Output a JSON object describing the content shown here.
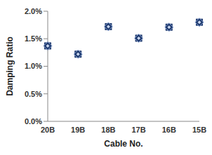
{
  "chart_data": {
    "type": "scatter",
    "x_label": "Cable No.",
    "y_label": "Damping Ratio",
    "categories": [
      "20B",
      "19B",
      "18B",
      "17B",
      "16B",
      "15B"
    ],
    "values": [
      1.37,
      1.22,
      1.72,
      1.51,
      1.71,
      1.8
    ],
    "color": "#1f3a6e",
    "marker": "diamond",
    "ylim": [
      0,
      2
    ],
    "yticks": [
      {
        "value": 0,
        "label": "0.0%"
      },
      {
        "value": 0.5,
        "label": "0.5%"
      },
      {
        "value": 1,
        "label": "1.0%"
      },
      {
        "value": 1.5,
        "label": "1.5%"
      },
      {
        "value": 2,
        "label": "2.0%"
      }
    ],
    "grid": false
  }
}
